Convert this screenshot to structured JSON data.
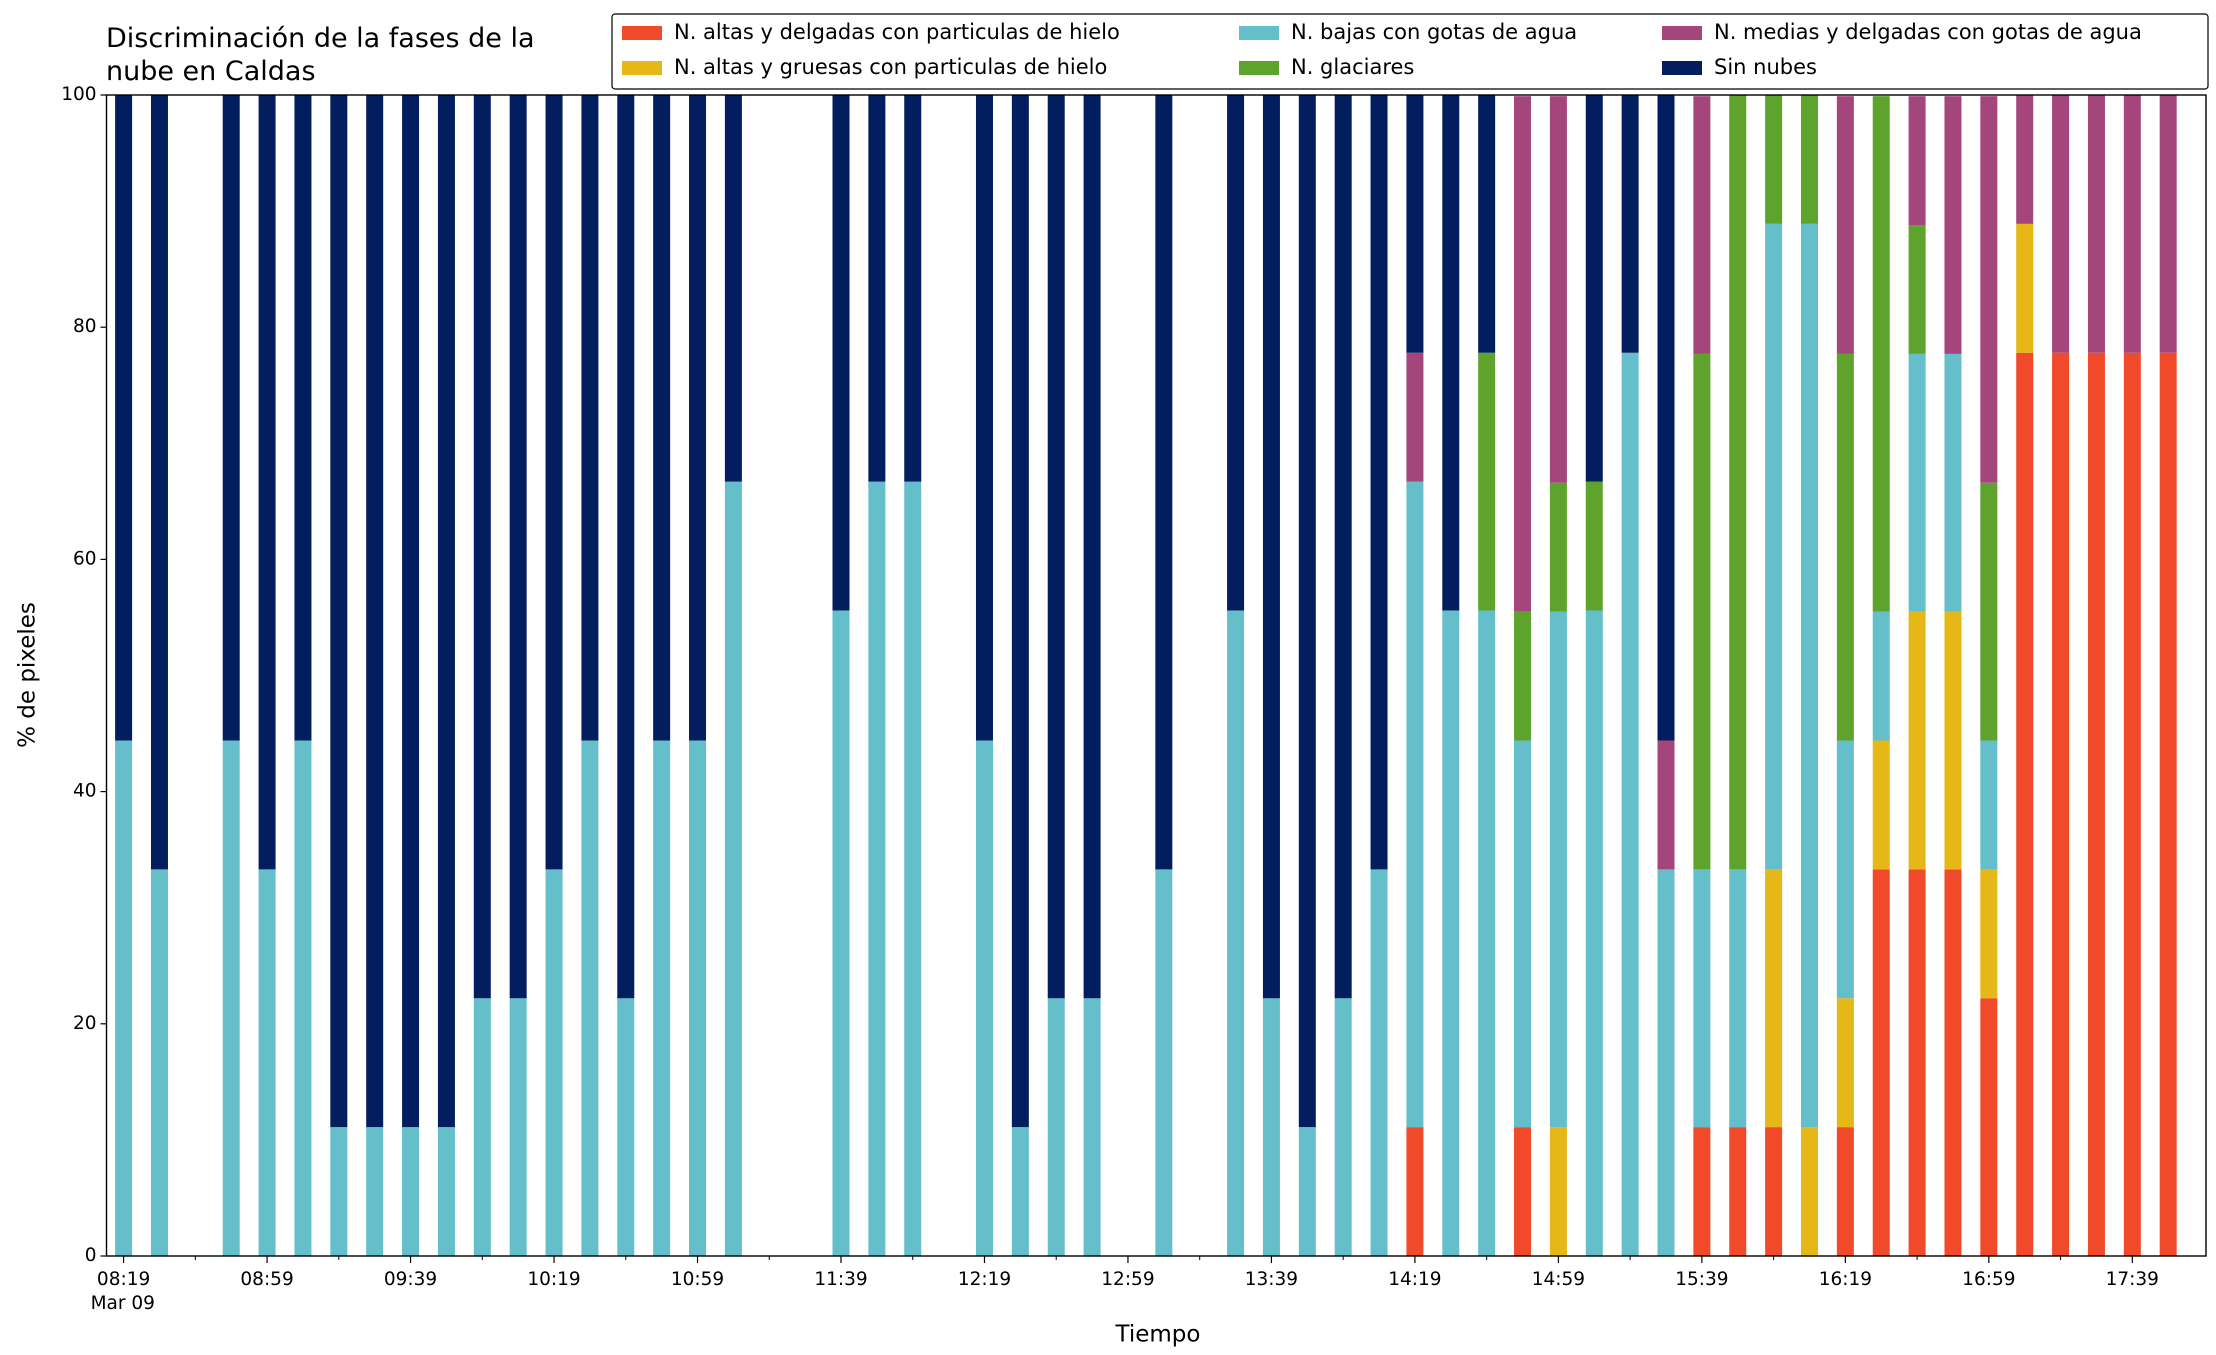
{
  "chart_data": {
    "type": "stacked_bar",
    "title": "Discriminación de la fases de la\nnube en Caldas",
    "x_label": "Tiempo",
    "y_label": "% de pixeles",
    "x_sublabel": "Mar 09",
    "categories": [
      "08:19",
      null,
      null,
      null,
      "08:59",
      null,
      null,
      null,
      "09:39",
      null,
      null,
      null,
      "10:19",
      null,
      null,
      null,
      "10:59",
      null,
      null,
      null,
      "11:39",
      null,
      null,
      null,
      "12:19",
      null,
      null,
      null,
      "12:59",
      null,
      null,
      null,
      "13:39",
      null,
      null,
      null,
      "14:19",
      null,
      null,
      null,
      "14:59",
      null,
      null,
      null,
      "15:39",
      null,
      null,
      null,
      "16:19",
      null,
      null,
      null,
      "16:59",
      null,
      null,
      null,
      "17:39",
      null
    ],
    "ylim": [
      0,
      100
    ],
    "yticks": [
      0,
      20,
      40,
      60,
      80,
      100
    ],
    "grid": false,
    "legend": "top-right",
    "series": [
      {
        "name": "N. altas y delgadas con particulas de hielo",
        "color": "#f04a2a",
        "values": [
          0,
          0,
          null,
          0,
          0,
          0,
          0,
          0,
          0,
          0,
          0,
          0,
          0,
          0,
          0,
          0,
          0,
          0,
          null,
          null,
          0,
          0,
          0,
          null,
          0,
          0,
          0,
          0,
          null,
          0,
          null,
          0,
          0,
          0,
          0,
          0,
          11.1,
          0,
          0,
          11.1,
          0,
          0,
          0,
          0,
          11.1,
          11.1,
          11.1,
          0,
          11.1,
          33.3,
          33.3,
          33.3,
          22.2,
          77.8,
          77.8,
          77.8,
          77.8,
          77.8
        ]
      },
      {
        "name": "N. altas y gruesas con particulas de hielo",
        "color": "#e5b717",
        "values": [
          0,
          0,
          null,
          0,
          0,
          0,
          0,
          0,
          0,
          0,
          0,
          0,
          0,
          0,
          0,
          0,
          0,
          0,
          null,
          null,
          0,
          0,
          0,
          null,
          0,
          0,
          0,
          0,
          null,
          0,
          null,
          0,
          0,
          0,
          0,
          0,
          0,
          0,
          0,
          0,
          11.1,
          0,
          0,
          0,
          0,
          0,
          22.2,
          11.1,
          11.1,
          11.1,
          22.2,
          22.2,
          11.1,
          11.1,
          0,
          0,
          0,
          0
        ]
      },
      {
        "name": "N. bajas con gotas de agua",
        "color": "#64bfca",
        "values": [
          44.4,
          33.3,
          null,
          44.4,
          33.3,
          44.4,
          11.1,
          11.1,
          11.1,
          11.1,
          22.2,
          22.2,
          33.3,
          44.4,
          22.2,
          44.4,
          44.4,
          66.7,
          null,
          null,
          55.6,
          66.7,
          66.7,
          null,
          44.4,
          11.1,
          22.2,
          22.2,
          null,
          33.3,
          null,
          55.6,
          22.2,
          11.1,
          22.2,
          33.3,
          55.6,
          55.6,
          55.6,
          33.3,
          44.4,
          55.6,
          77.8,
          33.3,
          22.2,
          22.2,
          55.6,
          77.8,
          22.2,
          11.1,
          22.2,
          22.2,
          11.1,
          0,
          0,
          0,
          0,
          0
        ]
      },
      {
        "name": "N. glaciares",
        "color": "#5ea42c",
        "values": [
          0,
          0,
          null,
          0,
          0,
          0,
          0,
          0,
          0,
          0,
          0,
          0,
          0,
          0,
          0,
          0,
          0,
          0,
          null,
          null,
          0,
          0,
          0,
          null,
          0,
          0,
          0,
          0,
          null,
          0,
          null,
          0,
          0,
          0,
          0,
          0,
          0,
          0,
          22.2,
          11.1,
          11.1,
          11.1,
          0,
          0,
          44.4,
          66.7,
          11.1,
          11.1,
          33.3,
          44.4,
          11.1,
          0,
          22.2,
          0,
          0,
          0,
          0,
          0
        ]
      },
      {
        "name": "N. medias y delgadas con gotas de agua",
        "color": "#a4467c",
        "values": [
          0,
          0,
          null,
          0,
          0,
          0,
          0,
          0,
          0,
          0,
          0,
          0,
          0,
          0,
          0,
          0,
          0,
          0,
          null,
          null,
          0,
          0,
          0,
          null,
          0,
          0,
          0,
          0,
          null,
          0,
          null,
          0,
          0,
          0,
          0,
          0,
          11.1,
          0,
          0,
          44.4,
          33.3,
          0,
          0,
          11.1,
          22.2,
          0,
          0,
          0,
          22.2,
          0,
          11.1,
          22.2,
          33.3,
          11.1,
          22.2,
          22.2,
          22.2,
          22.2
        ]
      },
      {
        "name": "Sin nubes",
        "color": "#031e5e",
        "values": [
          55.6,
          66.7,
          null,
          55.6,
          66.7,
          55.6,
          88.9,
          88.9,
          88.9,
          88.9,
          77.8,
          77.8,
          66.7,
          55.6,
          77.8,
          55.6,
          55.6,
          33.3,
          null,
          null,
          44.4,
          33.3,
          33.3,
          null,
          55.6,
          88.9,
          77.8,
          77.8,
          null,
          66.7,
          null,
          44.4,
          77.8,
          88.9,
          77.8,
          66.7,
          22.2,
          44.4,
          22.2,
          0,
          0,
          33.3,
          22.2,
          55.6,
          0,
          0,
          0,
          0,
          0,
          0,
          0,
          0,
          0,
          0,
          0,
          0,
          0,
          0
        ]
      }
    ]
  }
}
